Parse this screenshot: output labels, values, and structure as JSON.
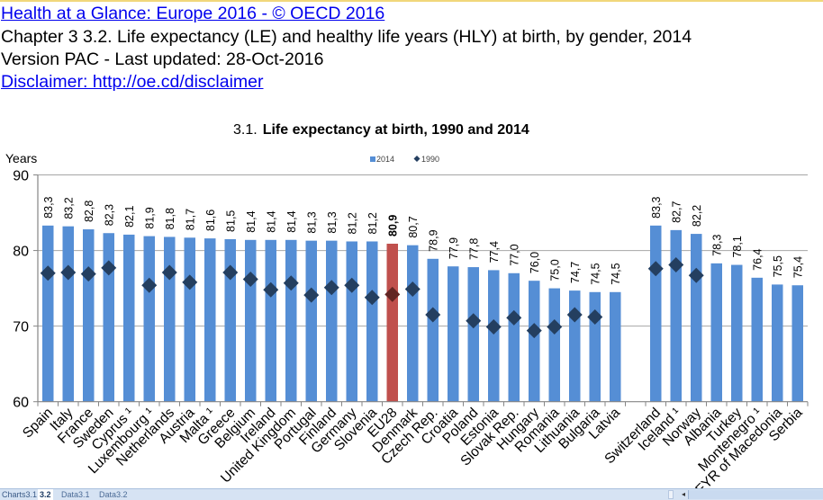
{
  "header": {
    "title_link": "Health at a Glance: Europe 2016 - © OECD 2016",
    "chapter": "Chapter 3  3.2. Life expectancy (LE) and healthy life years (HLY) at birth, by gender, 2014",
    "version": "Version PAC - Last updated: 28-Oct-2016",
    "disclaimer_link": "Disclaimer: http://oe.cd/disclaimer"
  },
  "sheet_tabs": {
    "items": [
      "Charts3.1",
      "3.2",
      "Data3.1",
      "Data3.2"
    ],
    "active": "3.2"
  },
  "colors": {
    "bar": "#558ed5",
    "bar_highlight": "#c0504d",
    "marker": "#243f60",
    "marker_highlight": "#632523",
    "gridline": "#a6a6a6"
  },
  "chart_data": {
    "type": "bar",
    "title_prefix": "3.1.",
    "title": "Life expectancy at birth, 1990 and 2014",
    "ylabel": "Years",
    "xlabel": "",
    "ylim": [
      60,
      90
    ],
    "yticks": [
      "60",
      "70",
      "80",
      "90"
    ],
    "grid": true,
    "legend": {
      "position": "top-center",
      "entries": [
        {
          "label": "2014",
          "shape": "square"
        },
        {
          "label": "1990",
          "shape": "diamond"
        }
      ]
    },
    "highlight_category": "EU28",
    "categories": [
      "Spain",
      "Italy",
      "France",
      "Sweden",
      "Cyprus ¹",
      "Luxembourg ¹",
      "Netherlands",
      "Austria",
      "Malta ¹",
      "Greece",
      "Belgium",
      "Ireland",
      "United Kingdom",
      "Portugal",
      "Finland",
      "Germany",
      "Slovenia",
      "EU28",
      "Denmark",
      "Czech Rep.",
      "Croatia",
      "Poland",
      "Estonia",
      "Slovak Rep.",
      "Hungary",
      "Romania",
      "Lithuania",
      "Bulgaria",
      "Latvia",
      "",
      "Switzerland",
      "Iceland ¹",
      "Norway",
      "Albania",
      "Turkey",
      "Montenegro ¹",
      "FYR of Macedonia",
      "Serbia"
    ],
    "series": [
      {
        "name": "2014",
        "kind": "bar",
        "values": [
          83.3,
          83.2,
          82.8,
          82.3,
          82.1,
          81.9,
          81.8,
          81.7,
          81.6,
          81.5,
          81.4,
          81.4,
          81.4,
          81.3,
          81.3,
          81.2,
          81.2,
          80.9,
          80.7,
          78.9,
          77.9,
          77.8,
          77.4,
          77.0,
          76.0,
          75.0,
          74.7,
          74.5,
          74.5,
          null,
          83.3,
          82.7,
          82.2,
          78.3,
          78.1,
          76.4,
          75.5,
          75.4
        ],
        "labels": [
          "83,3",
          "83,2",
          "82,8",
          "82,3",
          "82,1",
          "81,9",
          "81,8",
          "81,7",
          "81,6",
          "81,5",
          "81,4",
          "81,4",
          "81,4",
          "81,3",
          "81,3",
          "81,2",
          "81,2",
          "80,9",
          "80,7",
          "78,9",
          "77,9",
          "77,8",
          "77,4",
          "77,0",
          "76,0",
          "75,0",
          "74,7",
          "74,5",
          "74,5",
          "",
          "83,3",
          "82,7",
          "82,2",
          "78,3",
          "78,1",
          "76,4",
          "75,5",
          "75,4"
        ]
      },
      {
        "name": "1990",
        "kind": "marker",
        "values": [
          77.0,
          77.1,
          76.9,
          77.7,
          null,
          75.4,
          77.1,
          75.8,
          null,
          77.1,
          76.2,
          74.8,
          75.7,
          74.1,
          75.1,
          75.4,
          73.8,
          74.2,
          74.9,
          71.5,
          null,
          70.7,
          69.9,
          71.1,
          69.4,
          69.9,
          71.5,
          71.2,
          null,
          null,
          77.6,
          78.1,
          76.7,
          null,
          null,
          null,
          null,
          null
        ]
      }
    ]
  }
}
